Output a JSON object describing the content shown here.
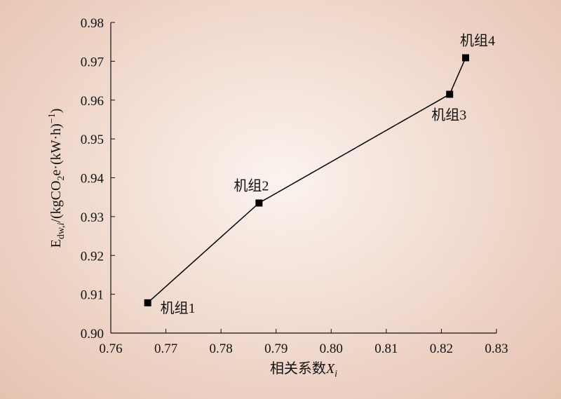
{
  "chart_data": {
    "type": "line",
    "title": "",
    "xlabel": "相关系数",
    "xlabel_var": "X",
    "xlabel_sub": "i",
    "ylabel_main": "E",
    "ylabel_sub": "dw,",
    "ylabel_sub_italic": "i",
    "ylabel_unit_a": "/(kgCO",
    "ylabel_unit_sub": "2",
    "ylabel_unit_b": "e·(kW·h)",
    "ylabel_unit_sup": "−1",
    "ylabel_unit_c": ")",
    "xlim": [
      0.76,
      0.83
    ],
    "ylim": [
      0.9,
      0.98
    ],
    "xticks": [
      "0.76",
      "0.77",
      "0.78",
      "0.79",
      "0.80",
      "0.81",
      "0.82",
      "0.83"
    ],
    "yticks": [
      "0.90",
      "0.91",
      "0.92",
      "0.93",
      "0.94",
      "0.95",
      "0.96",
      "0.97",
      "0.98"
    ],
    "grid": false,
    "series": [
      {
        "color": "#000000",
        "marker": "square",
        "points": [
          {
            "x": 0.7667,
            "y": 0.9078,
            "label": "机组1"
          },
          {
            "x": 0.7869,
            "y": 0.9335,
            "label": "机组2"
          },
          {
            "x": 0.8215,
            "y": 0.9615,
            "label": "机组3"
          },
          {
            "x": 0.8244,
            "y": 0.9709,
            "label": "机组4"
          }
        ]
      }
    ]
  }
}
